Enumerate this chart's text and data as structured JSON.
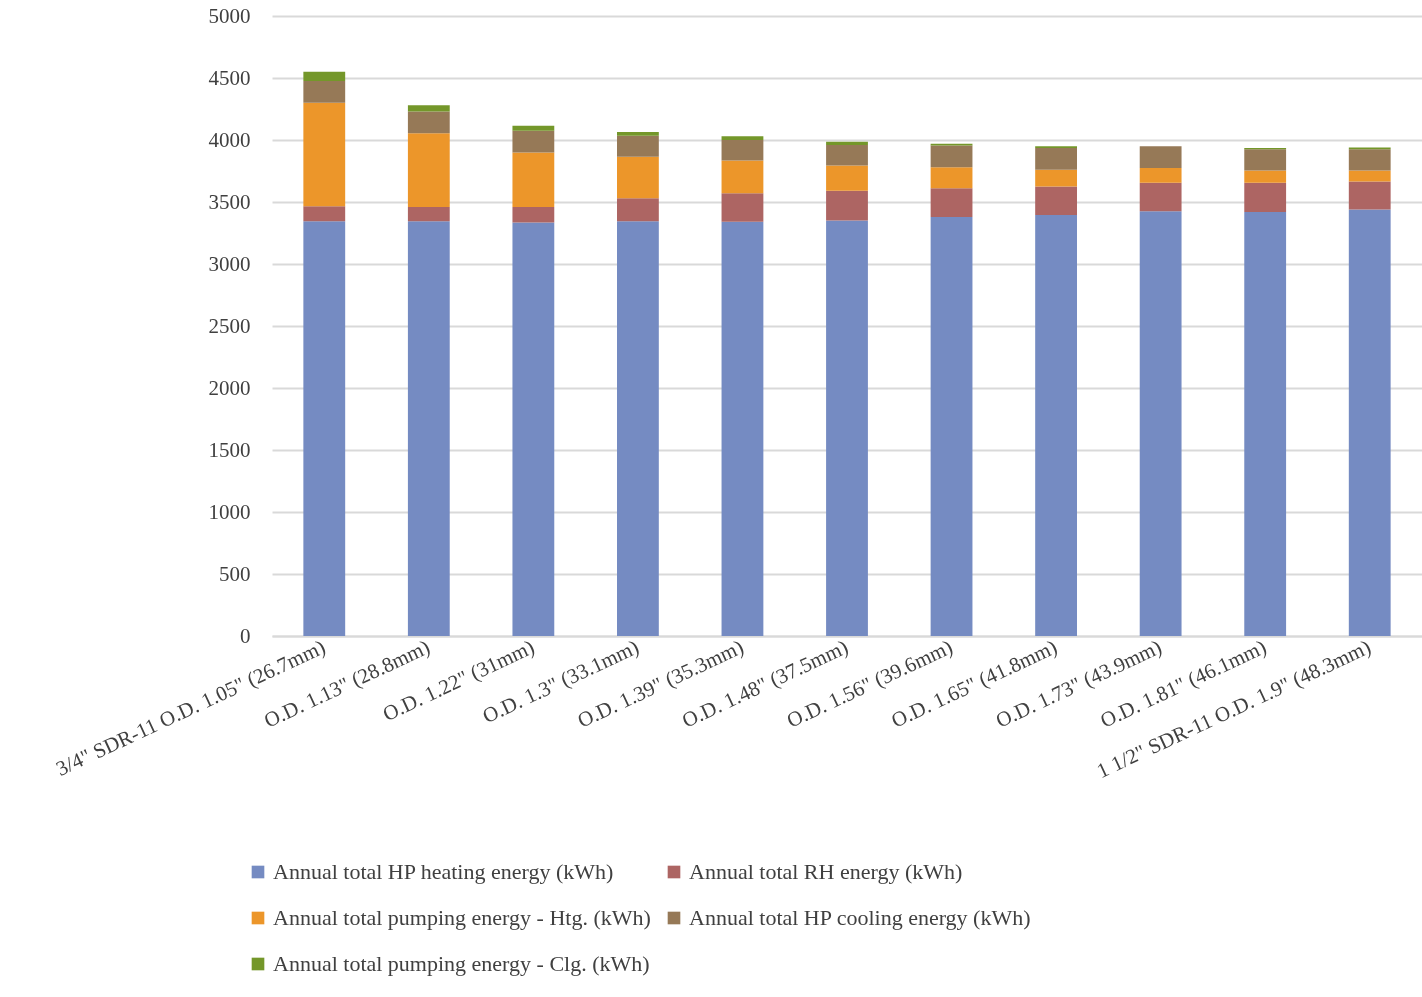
{
  "chart_data": {
    "type": "bar",
    "stacked": true,
    "categories": [
      "3/4\" SDR-11 O.D. 1.05\" (26.7mm)",
      "O.D. 1.13\" (28.8mm)",
      "O.D. 1.22\" (31mm)",
      "O.D. 1.3\" (33.1mm)",
      "O.D. 1.39\" (35.3mm)",
      "O.D. 1.48\" (37.5mm)",
      "O.D. 1.56\" (39.6mm)",
      "O.D. 1.65\" (41.8mm)",
      "O.D. 1.73\" (43.9mm)",
      "O.D. 1.81\" (46.1mm)",
      "1 1/2\" SDR-11  O.D. 1.9\" (48.3mm)"
    ],
    "series": [
      {
        "name": "Annual total HP heating energy (kWh)",
        "color": "#758bc2",
        "values": [
          3345,
          3345,
          3335,
          3345,
          3340,
          3350,
          3380,
          3395,
          3425,
          3420,
          3440
        ]
      },
      {
        "name": "Annual total RH energy (kWh)",
        "color": "#ad6563",
        "values": [
          120,
          115,
          125,
          185,
          230,
          240,
          230,
          230,
          230,
          235,
          225
        ]
      },
      {
        "name": "Annual total pumping energy - Htg. (kWh)",
        "color": "#ec962a",
        "values": [
          835,
          595,
          440,
          335,
          265,
          205,
          170,
          135,
          120,
          100,
          90
        ]
      },
      {
        "name": "Annual total HP cooling energy (kWh)",
        "color": "#967957",
        "values": [
          175,
          175,
          175,
          170,
          165,
          165,
          175,
          175,
          175,
          170,
          170
        ]
      },
      {
        "name": "Annual total pumping energy - Clg. (kWh)",
        "color": "#74972a",
        "values": [
          75,
          50,
          40,
          30,
          30,
          25,
          15,
          15,
          null,
          10,
          15
        ]
      }
    ],
    "ylim": [
      0,
      5000
    ],
    "yticks": [
      0,
      500,
      1000,
      1500,
      2000,
      2500,
      3000,
      3500,
      4000,
      4500,
      5000
    ],
    "grid": "y",
    "legend": "bottom"
  }
}
